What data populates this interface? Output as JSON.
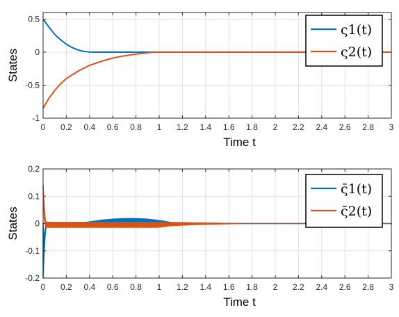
{
  "chart_data": [
    {
      "type": "line",
      "xlabel": "Time t",
      "ylabel": "States",
      "xlim": [
        0,
        3
      ],
      "ylim": [
        -1,
        0.6
      ],
      "xticks": [
        "0",
        "0.2",
        "0.4",
        "0.6",
        "0.8",
        "1",
        "1.2",
        "1.4",
        "1.6",
        "1.8",
        "2",
        "2.2",
        "2.4",
        "2.6",
        "2.8",
        "3"
      ],
      "yticks": [
        "-1",
        "-0.5",
        "0",
        "0.5"
      ],
      "grid": true,
      "legend_position": "top-right",
      "series": [
        {
          "name": "ς1(t)",
          "color": "#0072BD",
          "x": [
            0,
            0.05,
            0.1,
            0.15,
            0.2,
            0.25,
            0.3,
            0.35,
            0.4,
            0.45,
            0.5,
            0.7,
            1.0,
            3.0
          ],
          "y": [
            0.5,
            0.38,
            0.27,
            0.19,
            0.12,
            0.07,
            0.035,
            0.012,
            0.002,
            0,
            0,
            0,
            0,
            0
          ]
        },
        {
          "name": "ς2(t)",
          "color": "#D95319",
          "x": [
            0,
            0.05,
            0.1,
            0.15,
            0.2,
            0.3,
            0.4,
            0.5,
            0.6,
            0.7,
            0.8,
            0.9,
            0.95,
            1.0,
            3.0
          ],
          "y": [
            -0.85,
            -0.7,
            -0.58,
            -0.48,
            -0.4,
            -0.29,
            -0.2,
            -0.14,
            -0.09,
            -0.055,
            -0.03,
            -0.01,
            0,
            0,
            0
          ]
        }
      ]
    },
    {
      "type": "line",
      "xlabel": "Time t",
      "ylabel": "States",
      "xlim": [
        0,
        3
      ],
      "ylim": [
        -0.2,
        0.2
      ],
      "xticks": [
        "0",
        "0.2",
        "0.4",
        "0.6",
        "0.8",
        "1",
        "1.2",
        "1.4",
        "1.6",
        "1.8",
        "2",
        "2.2",
        "2.4",
        "2.6",
        "2.8",
        "3"
      ],
      "yticks": [
        "-0.2",
        "-0.1",
        "0",
        "0.1",
        "0.2"
      ],
      "grid": true,
      "legend_position": "top-right",
      "series": [
        {
          "name": "ς̄1(t)",
          "color": "#0072BD",
          "x": [
            0,
            0.01,
            0.02,
            0.03,
            0.35,
            0.4,
            0.5,
            0.6,
            0.7,
            0.8,
            0.9,
            0.98,
            1.1,
            1.3,
            1.5,
            1.7,
            2.0,
            3.0
          ],
          "upper": [
            0,
            -0.06,
            -0.02,
            0,
            0.003,
            0.006,
            0.012,
            0.016,
            0.018,
            0.018,
            0.016,
            0.012,
            0.004,
            0.002,
            0.001,
            0,
            0,
            0
          ],
          "lower": [
            -0.2,
            -0.1,
            -0.03,
            -0.005,
            -0.003,
            -0.004,
            -0.004,
            -0.004,
            -0.004,
            -0.004,
            -0.004,
            -0.004,
            -0.003,
            -0.002,
            -0.001,
            0,
            0,
            0
          ]
        },
        {
          "name": "ς̄2(t)",
          "color": "#D95319",
          "x": [
            0,
            0.01,
            0.02,
            0.03,
            0.1,
            0.3,
            0.5,
            0.7,
            0.9,
            0.98,
            1.1,
            1.3,
            1.5,
            1.7,
            2.0,
            3.0
          ],
          "upper": [
            0.14,
            0.06,
            0.01,
            0.005,
            0.004,
            0.004,
            0.004,
            0.004,
            0.004,
            0.004,
            0.003,
            0.002,
            0.001,
            0,
            0,
            0
          ],
          "lower": [
            0.14,
            0.02,
            -0.01,
            -0.014,
            -0.014,
            -0.014,
            -0.014,
            -0.014,
            -0.014,
            -0.014,
            -0.008,
            -0.004,
            -0.002,
            0,
            0,
            0
          ]
        }
      ]
    }
  ]
}
